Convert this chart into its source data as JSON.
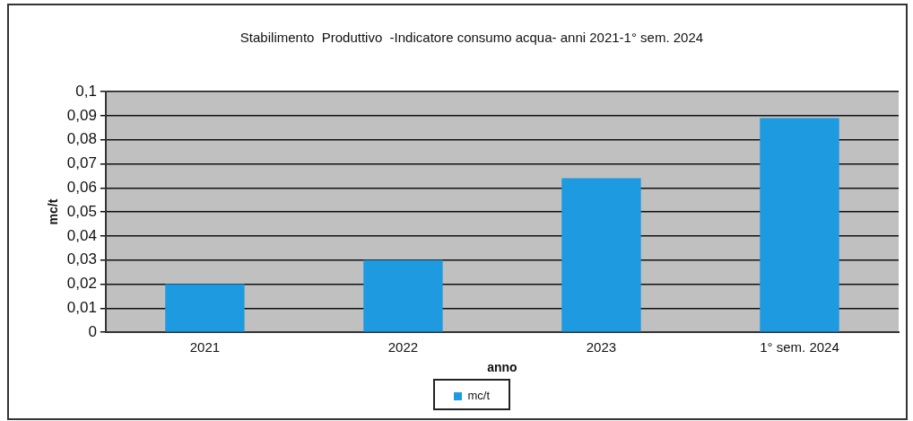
{
  "chart_data": {
    "type": "bar",
    "title": "Stabilimento  Produttivo  -Indicatore consumo acqua- anni 2021-1° sem. 2024",
    "xlabel": "anno",
    "ylabel": "mc/t",
    "categories": [
      "2021",
      "2022",
      "2023",
      "1° sem. 2024"
    ],
    "series": [
      {
        "name": "mc/t",
        "color": "#1e9be0",
        "values": [
          0.02,
          0.03,
          0.064,
          0.089
        ]
      }
    ],
    "ylim": [
      0,
      0.1
    ],
    "yticks": [
      {
        "value": 0,
        "label": "0"
      },
      {
        "value": 0.01,
        "label": "0,01"
      },
      {
        "value": 0.02,
        "label": "0,02"
      },
      {
        "value": 0.03,
        "label": "0,03"
      },
      {
        "value": 0.04,
        "label": "0,04"
      },
      {
        "value": 0.05,
        "label": "0,05"
      },
      {
        "value": 0.06,
        "label": "0,06"
      },
      {
        "value": 0.07,
        "label": "0,07"
      },
      {
        "value": 0.08,
        "label": "0,08"
      },
      {
        "value": 0.09,
        "label": "0,09"
      },
      {
        "value": 0.1,
        "label": "0,1"
      }
    ],
    "grid": "y",
    "legend": "bottom"
  }
}
